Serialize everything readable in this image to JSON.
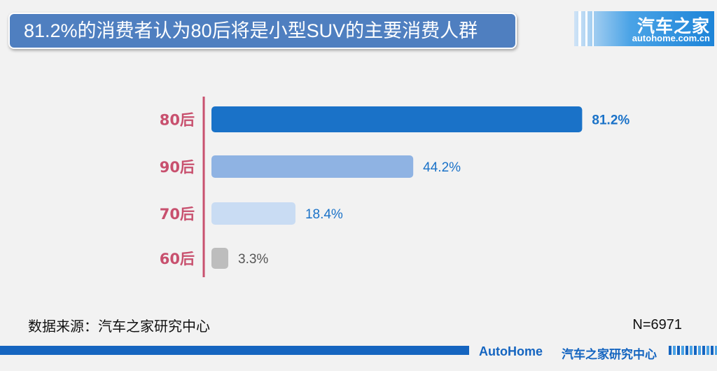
{
  "header": {
    "title": "81.2%的消费者认为80后将是小型SUV的主要消费人群"
  },
  "logo": {
    "cn": "汽车之家",
    "en": "autohome.com.cn"
  },
  "chart_data": {
    "type": "bar",
    "orientation": "horizontal",
    "title": "81.2%的消费者认为80后将是小型SUV的主要消费人群",
    "categories": [
      "80后",
      "90后",
      "70后",
      "60后"
    ],
    "values": [
      81.2,
      44.2,
      18.4,
      3.3
    ],
    "value_labels": [
      "81.2%",
      "44.2%",
      "18.4%",
      "3.3%"
    ],
    "xlim": [
      0,
      100
    ],
    "bar_colors": [
      "#1a72c8",
      "#8fb3e3",
      "#c9dcf3",
      "#bdbdbd"
    ],
    "label_colors": [
      "#1a72c8",
      "#1a72c8",
      "#1a72c8",
      "#555555"
    ],
    "category_color": "#c8506e",
    "axis_color": "#c8506e",
    "grid": false,
    "legend": "none"
  },
  "footer": {
    "source": "数据来源：汽车之家研究中心",
    "sample": "N=6971",
    "brand_en": "AutoHome",
    "brand_cn": "汽车之家研究中心"
  }
}
